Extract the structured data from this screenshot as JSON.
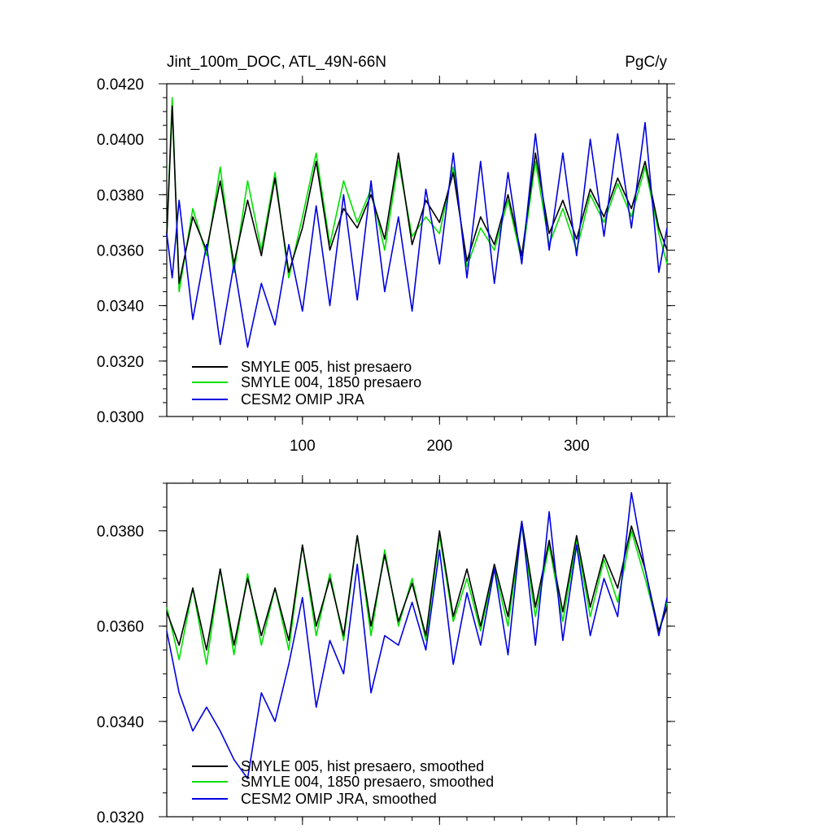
{
  "chart_data": [
    {
      "type": "line",
      "title": "Jint_100m_DOC, ATL_49N-66N",
      "units": "PgC/y",
      "xlim": [
        1,
        366
      ],
      "ylim": [
        0.03,
        0.042
      ],
      "xticks": [
        100,
        200,
        300
      ],
      "xtick_labels": [
        "100",
        "200",
        "300"
      ],
      "yticks": [
        0.03,
        0.032,
        0.034,
        0.036,
        0.038,
        0.04,
        0.042
      ],
      "ytick_labels": [
        "0.0300",
        "0.0320",
        "0.0340",
        "0.0360",
        "0.0380",
        "0.0400",
        "0.0420"
      ],
      "legend_position": "bottom-left",
      "series": [
        {
          "name": "SMYLE 005, hist presaero",
          "color": "#000000",
          "x": [
            1,
            5,
            10,
            20,
            30,
            40,
            50,
            60,
            70,
            80,
            90,
            100,
            110,
            120,
            130,
            140,
            150,
            160,
            170,
            180,
            190,
            200,
            210,
            220,
            230,
            240,
            250,
            260,
            270,
            280,
            290,
            300,
            310,
            320,
            330,
            340,
            350,
            360,
            366
          ],
          "values": [
            0.0365,
            0.0412,
            0.0348,
            0.0372,
            0.036,
            0.0385,
            0.0355,
            0.0378,
            0.0358,
            0.0386,
            0.0352,
            0.0368,
            0.0392,
            0.036,
            0.0375,
            0.0368,
            0.038,
            0.0364,
            0.0395,
            0.0362,
            0.0378,
            0.037,
            0.0388,
            0.0356,
            0.0372,
            0.0362,
            0.038,
            0.0358,
            0.0395,
            0.0366,
            0.0378,
            0.0364,
            0.0382,
            0.0372,
            0.0386,
            0.0375,
            0.0392,
            0.0368,
            0.036
          ]
        },
        {
          "name": "SMYLE 004, 1850 presaero",
          "color": "#00e000",
          "x": [
            1,
            5,
            10,
            20,
            30,
            40,
            50,
            60,
            70,
            80,
            90,
            100,
            110,
            120,
            130,
            140,
            150,
            160,
            170,
            180,
            190,
            200,
            210,
            220,
            230,
            240,
            250,
            260,
            270,
            280,
            290,
            300,
            310,
            320,
            330,
            340,
            350,
            360,
            366
          ],
          "values": [
            0.0365,
            0.0415,
            0.0345,
            0.0375,
            0.0358,
            0.039,
            0.0352,
            0.0385,
            0.036,
            0.0388,
            0.035,
            0.0372,
            0.0395,
            0.0362,
            0.0385,
            0.037,
            0.0382,
            0.036,
            0.0392,
            0.0365,
            0.0372,
            0.0366,
            0.039,
            0.0354,
            0.0368,
            0.036,
            0.0378,
            0.0356,
            0.0392,
            0.0362,
            0.0375,
            0.036,
            0.038,
            0.037,
            0.0384,
            0.0372,
            0.039,
            0.0366,
            0.0355
          ]
        },
        {
          "name": "CESM2 OMIP JRA",
          "color": "#0000e0",
          "x": [
            1,
            5,
            10,
            20,
            30,
            40,
            50,
            60,
            70,
            80,
            90,
            100,
            110,
            120,
            130,
            140,
            150,
            160,
            170,
            180,
            190,
            200,
            210,
            220,
            230,
            240,
            250,
            260,
            270,
            280,
            290,
            300,
            310,
            320,
            330,
            340,
            350,
            360,
            366
          ],
          "values": [
            0.0366,
            0.035,
            0.0378,
            0.0335,
            0.0362,
            0.0326,
            0.0355,
            0.0325,
            0.0348,
            0.0333,
            0.0362,
            0.0338,
            0.0376,
            0.034,
            0.038,
            0.0342,
            0.0385,
            0.0345,
            0.0372,
            0.0338,
            0.0382,
            0.0355,
            0.0395,
            0.035,
            0.0392,
            0.0348,
            0.0388,
            0.0355,
            0.0402,
            0.036,
            0.0395,
            0.0358,
            0.04,
            0.0365,
            0.0402,
            0.0368,
            0.0406,
            0.0352,
            0.0368
          ]
        }
      ]
    },
    {
      "type": "line",
      "title": "",
      "units": "",
      "xlim": [
        1,
        366
      ],
      "ylim": [
        0.032,
        0.039
      ],
      "xticks": [
        100,
        200,
        300
      ],
      "xtick_labels": [],
      "yticks": [
        0.032,
        0.034,
        0.036,
        0.038
      ],
      "ytick_labels": [
        "0.0320",
        "0.0340",
        "0.0360",
        "0.0380"
      ],
      "legend_position": "bottom-left",
      "series": [
        {
          "name": "SMYLE 005, hist presaero, smoothed",
          "color": "#000000",
          "x": [
            1,
            10,
            20,
            30,
            40,
            50,
            60,
            70,
            80,
            90,
            100,
            110,
            120,
            130,
            140,
            150,
            160,
            170,
            180,
            190,
            200,
            210,
            220,
            230,
            240,
            250,
            260,
            270,
            280,
            290,
            300,
            310,
            320,
            330,
            340,
            350,
            360,
            366
          ],
          "values": [
            0.0363,
            0.0356,
            0.0368,
            0.0355,
            0.0372,
            0.0356,
            0.037,
            0.0358,
            0.0368,
            0.0357,
            0.0377,
            0.036,
            0.037,
            0.0358,
            0.0379,
            0.036,
            0.0375,
            0.0361,
            0.0369,
            0.0358,
            0.038,
            0.0362,
            0.0372,
            0.036,
            0.0373,
            0.0362,
            0.0382,
            0.0364,
            0.0378,
            0.0363,
            0.0379,
            0.0364,
            0.0375,
            0.0368,
            0.0381,
            0.0372,
            0.0359,
            0.0364
          ]
        },
        {
          "name": "SMYLE 004, 1850 presaero, smoothed",
          "color": "#00e000",
          "x": [
            1,
            10,
            20,
            30,
            40,
            50,
            60,
            70,
            80,
            90,
            100,
            110,
            120,
            130,
            140,
            150,
            160,
            170,
            180,
            190,
            200,
            210,
            220,
            230,
            240,
            250,
            260,
            270,
            280,
            290,
            300,
            310,
            320,
            330,
            340,
            350,
            360,
            366
          ],
          "values": [
            0.0364,
            0.0353,
            0.0368,
            0.0352,
            0.0372,
            0.0354,
            0.0371,
            0.0356,
            0.0368,
            0.0355,
            0.0377,
            0.0358,
            0.0371,
            0.0357,
            0.0379,
            0.0358,
            0.0376,
            0.036,
            0.037,
            0.0357,
            0.0379,
            0.0361,
            0.037,
            0.0359,
            0.0372,
            0.036,
            0.0381,
            0.0362,
            0.0377,
            0.0361,
            0.0378,
            0.0362,
            0.0374,
            0.0365,
            0.038,
            0.037,
            0.0359,
            0.0365
          ]
        },
        {
          "name": "CESM2 OMIP JRA, smoothed",
          "color": "#0000e0",
          "x": [
            1,
            10,
            20,
            30,
            40,
            50,
            60,
            70,
            80,
            90,
            100,
            110,
            120,
            130,
            140,
            150,
            160,
            170,
            180,
            190,
            200,
            210,
            220,
            230,
            240,
            250,
            260,
            270,
            280,
            290,
            300,
            310,
            320,
            330,
            340,
            350,
            360,
            366
          ],
          "values": [
            0.0359,
            0.0346,
            0.0338,
            0.0343,
            0.0338,
            0.0332,
            0.0328,
            0.0346,
            0.034,
            0.0352,
            0.0366,
            0.0343,
            0.0357,
            0.035,
            0.0373,
            0.0346,
            0.0358,
            0.0356,
            0.0365,
            0.0355,
            0.0376,
            0.0352,
            0.0367,
            0.0356,
            0.0372,
            0.0354,
            0.0382,
            0.0356,
            0.0384,
            0.0357,
            0.0377,
            0.0358,
            0.037,
            0.0362,
            0.0388,
            0.0372,
            0.0358,
            0.0366
          ]
        }
      ]
    }
  ]
}
